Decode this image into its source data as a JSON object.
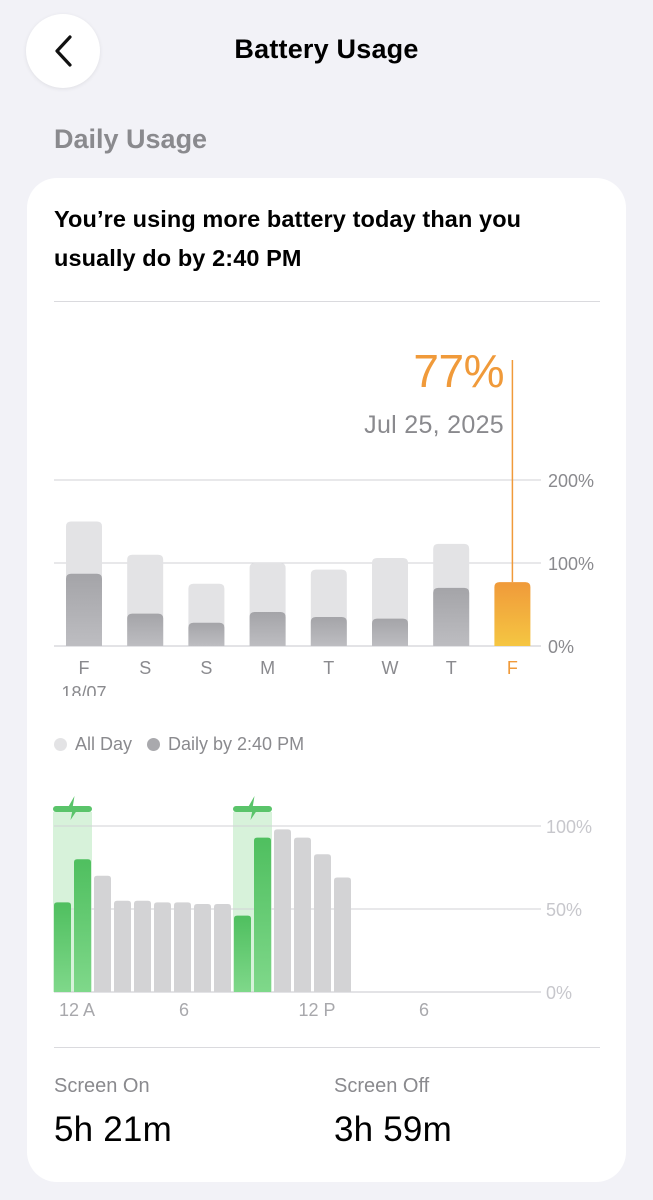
{
  "nav": {
    "title": "Battery Usage"
  },
  "section": {
    "title": "Daily Usage"
  },
  "card": {
    "message": "You’re using more battery today than you usually do by 2:40 PM"
  },
  "selection": {
    "value": "77%",
    "date": "Jul 25, 2025"
  },
  "legend": {
    "all_day": "All Day",
    "daily_by": "Daily by 2:40 PM"
  },
  "stats": {
    "screen_on": {
      "label": "Screen On",
      "value": "5h 21m"
    },
    "screen_off": {
      "label": "Screen Off",
      "value": "3h 59m"
    }
  },
  "colors": {
    "accent_orange": "#f09a3a",
    "accent_yellow": "#f5c642",
    "charging_green": "#5ac46a",
    "all_day_gray": "#e3e3e5",
    "daily_gray": "#a9a9ad",
    "hourly_gray": "#d3d3d5"
  },
  "chart_data": [
    {
      "type": "bar",
      "categories": [
        "F",
        "S",
        "S",
        "M",
        "T",
        "W",
        "T",
        "F"
      ],
      "sublabels": [
        "18/07",
        "",
        "",
        "",
        "",
        "",
        "",
        ""
      ],
      "series": [
        {
          "name": "All Day",
          "values": [
            150,
            110,
            75,
            100,
            92,
            106,
            123,
            77
          ]
        },
        {
          "name": "Daily by 2:40 PM",
          "values": [
            87,
            39,
            28,
            41,
            35,
            33,
            70,
            77
          ]
        }
      ],
      "selected_index": 7,
      "ylim": [
        0,
        200
      ],
      "yticks": [
        "200%",
        "100%",
        "0%"
      ]
    },
    {
      "type": "bar",
      "values": [
        54,
        80,
        70,
        55,
        55,
        54,
        54,
        53,
        53,
        46,
        93,
        98,
        93,
        83,
        69
      ],
      "charging": [
        true,
        true,
        false,
        false,
        false,
        false,
        false,
        false,
        false,
        true,
        true,
        false,
        false,
        false,
        false
      ],
      "charging_bands": [
        [
          0,
          1
        ],
        [
          9,
          10
        ]
      ],
      "x_tick_labels": [
        "12 A",
        "6",
        "12 P",
        "6"
      ],
      "ylim": [
        0,
        100
      ],
      "yticks": [
        "100%",
        "50%",
        "0%"
      ]
    }
  ]
}
